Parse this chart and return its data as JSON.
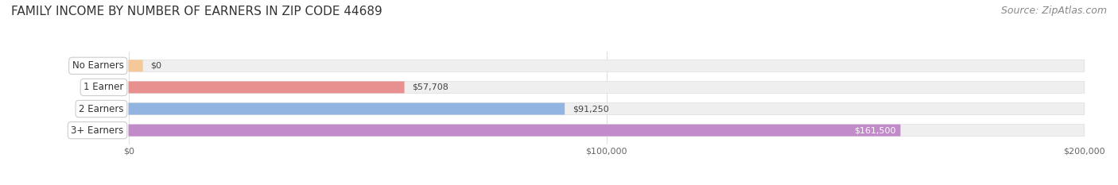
{
  "title": "FAMILY INCOME BY NUMBER OF EARNERS IN ZIP CODE 44689",
  "source": "Source: ZipAtlas.com",
  "categories": [
    "No Earners",
    "1 Earner",
    "2 Earners",
    "3+ Earners"
  ],
  "values": [
    0,
    57708,
    91250,
    161500
  ],
  "labels": [
    "$0",
    "$57,708",
    "$91,250",
    "$161,500"
  ],
  "bar_colors": [
    "#f5c89a",
    "#e88f8f",
    "#92b4e0",
    "#c08bc8"
  ],
  "label_colors": [
    "#555555",
    "#555555",
    "#555555",
    "#ffffff"
  ],
  "bar_bg_color": "#efefef",
  "xlim": [
    0,
    200000
  ],
  "xticks": [
    0,
    100000,
    200000
  ],
  "xtick_labels": [
    "$0",
    "$100,000",
    "$200,000"
  ],
  "title_fontsize": 11,
  "source_fontsize": 9,
  "bar_height": 0.55,
  "background_color": "#ffffff"
}
